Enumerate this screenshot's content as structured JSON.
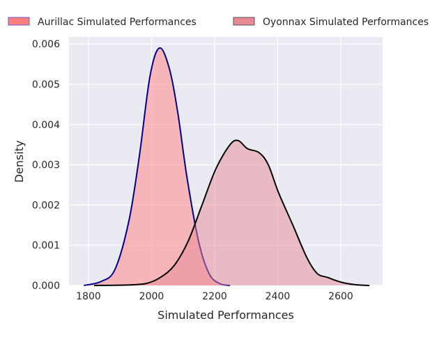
{
  "chart_data": {
    "type": "area",
    "title": "",
    "xlabel": "Simulated Performances",
    "ylabel": "Density",
    "xlim": [
      1740,
      2740
    ],
    "ylim": [
      0,
      0.00618
    ],
    "xticks": [
      1800,
      2000,
      2200,
      2400,
      2600
    ],
    "xtick_labels": [
      "1800",
      "2000",
      "2200",
      "2400",
      "2600"
    ],
    "yticks": [
      0,
      0.001,
      0.002,
      0.003,
      0.004,
      0.005,
      0.006
    ],
    "ytick_labels": [
      "0.000",
      "0.001",
      "0.002",
      "0.003",
      "0.004",
      "0.005",
      "0.006"
    ],
    "grid": true,
    "legend_position": "top, above plot",
    "series": [
      {
        "name": "Aurillac Simulated Performances",
        "fill": "#ff7f7f",
        "line": "#00008b",
        "x": [
          1785,
          1840,
          1884,
          1928,
          1961,
          1995,
          2025,
          2056,
          2083,
          2112,
          2149,
          2182,
          2215,
          2249
        ],
        "y": [
          0,
          0.0001,
          0.0004,
          0.0016,
          0.0032,
          0.0052,
          0.0059,
          0.0054,
          0.0043,
          0.0027,
          0.0011,
          0.0003,
          5e-05,
          0
        ]
      },
      {
        "name": "Oyonnax Simulated Performances",
        "fill": "#e88a95",
        "line": "#000000",
        "x": [
          1818,
          1917,
          1983,
          2028,
          2072,
          2116,
          2160,
          2204,
          2249,
          2275,
          2304,
          2341,
          2370,
          2403,
          2448,
          2492,
          2525,
          2558,
          2602,
          2646,
          2691
        ],
        "y": [
          0,
          1e-05,
          5e-05,
          0.0002,
          0.0005,
          0.0011,
          0.002,
          0.0029,
          0.0035,
          0.0036,
          0.0034,
          0.0033,
          0.003,
          0.0023,
          0.0015,
          0.0007,
          0.0003,
          0.0002,
          8e-05,
          2e-05,
          0
        ]
      }
    ]
  }
}
